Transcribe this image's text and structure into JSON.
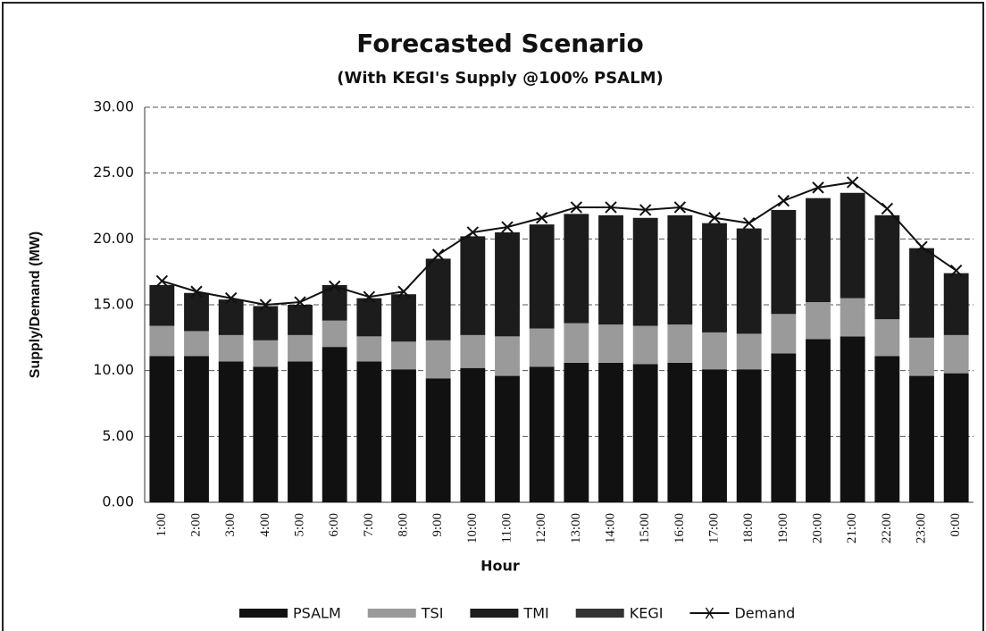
{
  "chart_data": {
    "type": "stacked-bar-line",
    "title": "Forecasted Scenario",
    "subtitle": "(With KEGI's Supply @100% PSALM)",
    "x_label": "Hour",
    "y_label": "Supply/Demand (MW)",
    "categories": [
      "1:00",
      "2:00",
      "3:00",
      "4:00",
      "5:00",
      "6:00",
      "7:00",
      "8:00",
      "9:00",
      "10:00",
      "11:00",
      "12:00",
      "13:00",
      "14:00",
      "15:00",
      "16:00",
      "17:00",
      "18:00",
      "19:00",
      "20:00",
      "21:00",
      "22:00",
      "23:00",
      "0:00"
    ],
    "series": [
      {
        "name": "PSALM",
        "color": "#111111",
        "kind": "bar",
        "values": [
          11.1,
          11.1,
          10.7,
          10.3,
          10.7,
          11.8,
          10.7,
          10.1,
          9.4,
          10.2,
          9.6,
          10.3,
          10.6,
          10.6,
          10.5,
          10.6,
          10.1,
          10.1,
          11.3,
          12.4,
          12.6,
          11.1,
          9.6,
          9.8
        ]
      },
      {
        "name": "TSI",
        "color": "#9a9a9a",
        "kind": "bar",
        "values": [
          2.3,
          1.9,
          2.0,
          2.0,
          2.0,
          2.0,
          1.9,
          2.1,
          2.9,
          2.5,
          3.0,
          2.9,
          3.0,
          2.9,
          2.9,
          2.9,
          2.8,
          2.7,
          3.0,
          2.8,
          2.9,
          2.8,
          2.9,
          2.9
        ]
      },
      {
        "name": "TMI",
        "color": "#1c1c1c",
        "kind": "bar",
        "values": [
          3.1,
          2.9,
          2.7,
          2.6,
          2.3,
          2.7,
          2.9,
          3.6,
          6.2,
          7.5,
          7.9,
          7.9,
          8.3,
          8.3,
          8.2,
          8.3,
          8.3,
          8.0,
          7.9,
          7.9,
          8.0,
          7.9,
          6.8,
          4.7
        ]
      },
      {
        "name": "KEGI",
        "color": "#333333",
        "kind": "bar",
        "values": [
          0,
          0,
          0,
          0,
          0,
          0,
          0,
          0,
          0,
          0,
          0,
          0,
          0,
          0,
          0,
          0,
          0,
          0,
          0,
          0,
          0,
          0,
          0,
          0
        ]
      },
      {
        "name": "Demand",
        "color": "#111111",
        "kind": "line",
        "values": [
          16.8,
          16.0,
          15.5,
          15.0,
          15.2,
          16.4,
          15.6,
          16.0,
          18.8,
          20.5,
          20.9,
          21.6,
          22.4,
          22.4,
          22.2,
          22.4,
          21.6,
          21.2,
          22.9,
          23.9,
          24.3,
          22.3,
          19.4,
          17.6
        ]
      }
    ],
    "ylim": [
      0,
      30
    ],
    "yticks": [
      {
        "value": 0,
        "label": "0.00"
      },
      {
        "value": 5,
        "label": "5.00"
      },
      {
        "value": 10,
        "label": "10.00"
      },
      {
        "value": 15,
        "label": "15.00"
      },
      {
        "value": 20,
        "label": "20.00"
      },
      {
        "value": 25,
        "label": "25.00"
      },
      {
        "value": 30,
        "label": "30.00"
      }
    ],
    "grid": true,
    "legend": "bottom"
  }
}
